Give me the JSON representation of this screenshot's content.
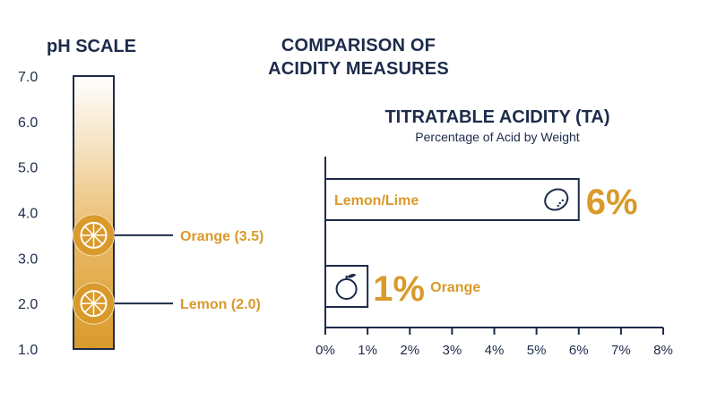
{
  "colors": {
    "navy": "#1d2b4a",
    "gold": "#d99a2b",
    "gold_light": "#f6e3c3"
  },
  "title": {
    "line1": "COMPARISON OF",
    "line2": "ACIDITY MEASURES"
  },
  "chart_data": [
    {
      "type": "bar",
      "title": "pH SCALE",
      "ylim": [
        1.0,
        7.0
      ],
      "y_ticks": [
        "7.0",
        "6.0",
        "5.0",
        "4.0",
        "3.0",
        "2.0",
        "1.0"
      ],
      "markers": [
        {
          "name": "Orange",
          "value": 3.5,
          "label": "Orange (3.5)",
          "icon": "orange-slice-icon"
        },
        {
          "name": "Lemon",
          "value": 2.0,
          "label": "Lemon (2.0)",
          "icon": "lemon-slice-icon"
        }
      ]
    },
    {
      "type": "bar",
      "title": "TITRATABLE ACIDITY (TA)",
      "subtitle": "Percentage of Acid by Weight",
      "orientation": "horizontal",
      "xlim": [
        0,
        8
      ],
      "x_ticks": [
        "0%",
        "1%",
        "2%",
        "3%",
        "4%",
        "5%",
        "6%",
        "7%",
        "8%"
      ],
      "grid": false,
      "bars": [
        {
          "category": "Lemon/Lime",
          "value": 6,
          "value_label": "6%",
          "icon": "lemon-icon"
        },
        {
          "category": "Orange",
          "value": 1,
          "value_label": "1%",
          "icon": "orange-icon"
        }
      ]
    }
  ]
}
